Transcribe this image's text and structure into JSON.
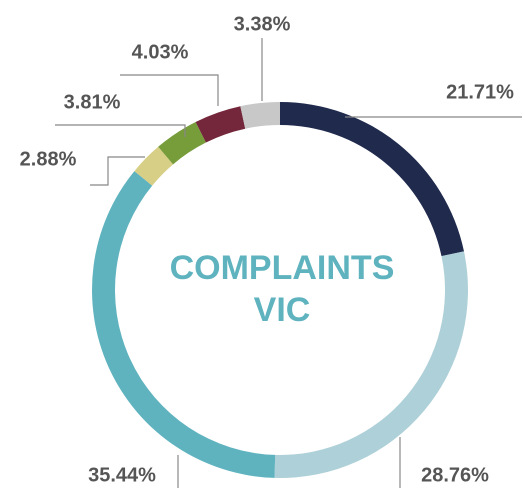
{
  "chart_data": {
    "type": "donut",
    "center_text": [
      "COMPLAINTS",
      "VIC"
    ],
    "values": [
      21.71,
      28.76,
      35.44,
      2.88,
      3.81,
      4.03,
      3.38
    ],
    "value_labels": [
      "21.71%",
      "28.76%",
      "35.44%",
      "2.88%",
      "3.81%",
      "4.03%",
      "3.38%"
    ],
    "colors": [
      "#1f2a4d",
      "#aed0d8",
      "#5fb3bf",
      "#d8cf86",
      "#779c3a",
      "#74273b",
      "#c8c8c8"
    ]
  }
}
